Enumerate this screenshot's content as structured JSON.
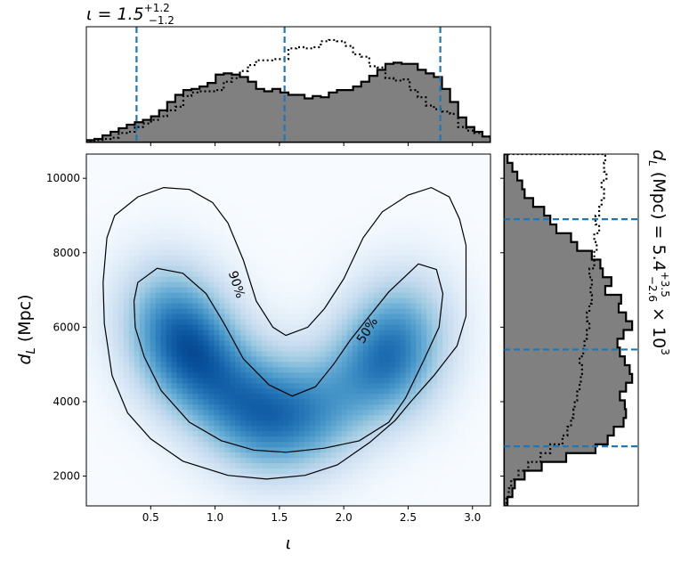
{
  "chart_data": [
    {
      "panel": "joint",
      "type": "heatmap",
      "xlabel": "ι",
      "ylabel": "d_L (Mpc)",
      "xlim": [
        0.0,
        3.14
      ],
      "ylim": [
        1200,
        10650
      ],
      "xticks": [
        0.5,
        1.0,
        1.5,
        2.0,
        2.5,
        3.0
      ],
      "yticks": [
        2000,
        4000,
        6000,
        8000,
        10000
      ],
      "colormap": "Blues",
      "density_modes": [
        {
          "x": 0.78,
          "y": 5400,
          "weight": 1.0
        },
        {
          "x": 1.05,
          "y": 4300,
          "weight": 0.55
        },
        {
          "x": 1.38,
          "y": 3500,
          "weight": 0.85
        },
        {
          "x": 1.8,
          "y": 3700,
          "weight": 0.7
        },
        {
          "x": 2.32,
          "y": 5000,
          "weight": 1.0
        },
        {
          "x": 0.6,
          "y": 6600,
          "weight": 0.55
        },
        {
          "x": 2.48,
          "y": 6300,
          "weight": 0.5
        }
      ],
      "contours": [
        {
          "label": "90%",
          "label_at": {
            "x": 1.17,
            "y": 7150,
            "rotation": 72
          },
          "points": [
            [
              0.13,
              7200
            ],
            [
              0.16,
              8400
            ],
            [
              0.22,
              9000
            ],
            [
              0.4,
              9500
            ],
            [
              0.6,
              9750
            ],
            [
              0.8,
              9700
            ],
            [
              0.98,
              9350
            ],
            [
              1.1,
              8800
            ],
            [
              1.22,
              7800
            ],
            [
              1.32,
              6700
            ],
            [
              1.45,
              6000
            ],
            [
              1.55,
              5780
            ],
            [
              1.72,
              6000
            ],
            [
              1.85,
              6500
            ],
            [
              2.0,
              7300
            ],
            [
              2.15,
              8400
            ],
            [
              2.3,
              9100
            ],
            [
              2.5,
              9550
            ],
            [
              2.68,
              9750
            ],
            [
              2.82,
              9500
            ],
            [
              2.9,
              8900
            ],
            [
              2.95,
              8200
            ],
            [
              2.95,
              7300
            ],
            [
              2.95,
              6300
            ],
            [
              2.88,
              5500
            ],
            [
              2.7,
              4700
            ],
            [
              2.52,
              4000
            ],
            [
              2.4,
              3500
            ],
            [
              2.2,
              2900
            ],
            [
              1.95,
              2300
            ],
            [
              1.7,
              2020
            ],
            [
              1.4,
              1920
            ],
            [
              1.1,
              2020
            ],
            [
              0.75,
              2400
            ],
            [
              0.5,
              3000
            ],
            [
              0.32,
              3700
            ],
            [
              0.2,
              4700
            ],
            [
              0.14,
              6100
            ],
            [
              0.13,
              7200
            ]
          ]
        },
        {
          "label": "50%",
          "label_at": {
            "x": 2.18,
            "y": 5920,
            "rotation": -58
          },
          "points": [
            [
              0.37,
              6700
            ],
            [
              0.4,
              7200
            ],
            [
              0.55,
              7580
            ],
            [
              0.75,
              7450
            ],
            [
              0.93,
              6900
            ],
            [
              1.07,
              6100
            ],
            [
              1.22,
              5150
            ],
            [
              1.42,
              4450
            ],
            [
              1.6,
              4150
            ],
            [
              1.78,
              4400
            ],
            [
              1.92,
              5000
            ],
            [
              2.05,
              5650
            ],
            [
              2.2,
              6300
            ],
            [
              2.35,
              6950
            ],
            [
              2.58,
              7700
            ],
            [
              2.72,
              7550
            ],
            [
              2.77,
              6900
            ],
            [
              2.74,
              6000
            ],
            [
              2.62,
              5100
            ],
            [
              2.48,
              4100
            ],
            [
              2.35,
              3450
            ],
            [
              2.12,
              2950
            ],
            [
              1.85,
              2750
            ],
            [
              1.55,
              2640
            ],
            [
              1.3,
              2700
            ],
            [
              1.05,
              2950
            ],
            [
              0.8,
              3450
            ],
            [
              0.58,
              4300
            ],
            [
              0.45,
              5200
            ],
            [
              0.38,
              6000
            ],
            [
              0.37,
              6700
            ]
          ]
        }
      ]
    },
    {
      "panel": "top-marginal",
      "type": "bar",
      "title": "ι = 1.5^{+1.2}_{-1.2}",
      "title_base": "ι = 1.5",
      "title_sup": "+1.2",
      "title_sub": "−1.2",
      "x_range": [
        0.0,
        3.14
      ],
      "bins": 50,
      "series": [
        {
          "style": "filled",
          "color": "#808080",
          "values": [
            2,
            3,
            6,
            9,
            12,
            15,
            17,
            19,
            22,
            27,
            34,
            40,
            44,
            45,
            47,
            50,
            57,
            58,
            57,
            55,
            51,
            45,
            43,
            45,
            42,
            40,
            40,
            37,
            39,
            38,
            42,
            44,
            44,
            47,
            51,
            56,
            61,
            66,
            67,
            66,
            66,
            61,
            58,
            55,
            45,
            34,
            21,
            13,
            9,
            5
          ]
        },
        {
          "style": "dotted",
          "color": "#000000",
          "values": [
            1,
            2,
            3,
            4,
            8,
            9,
            13,
            16,
            19,
            22,
            27,
            30,
            39,
            42,
            43,
            43,
            44,
            51,
            54,
            60,
            65,
            69,
            69,
            70,
            70,
            79,
            80,
            79,
            80,
            85,
            86,
            85,
            81,
            74,
            72,
            64,
            63,
            54,
            52,
            53,
            44,
            38,
            31,
            28,
            26,
            24,
            13,
            10,
            8,
            5
          ]
        }
      ],
      "quantile_lines": [
        0.39,
        1.54,
        2.75
      ]
    },
    {
      "panel": "right-marginal",
      "type": "bar",
      "orientation": "horizontal",
      "label_base": "d",
      "label_sub": "L",
      "label_mid": " (Mpc) = 5.4",
      "label_sup1": "+3.5",
      "label_sub1": "−2.6",
      "label_tail": " × 10",
      "label_sup2": "3",
      "y_range": [
        1200,
        10650
      ],
      "bins": 40,
      "series": [
        {
          "style": "filled",
          "color": "#808080",
          "values": [
            3,
            7,
            9,
            17,
            31,
            51,
            75,
            85,
            90,
            98,
            100,
            99,
            95,
            100,
            105,
            103,
            99,
            95,
            93,
            98,
            105,
            100,
            94,
            96,
            83,
            88,
            81,
            79,
            72,
            60,
            55,
            43,
            38,
            33,
            24,
            17,
            15,
            11,
            7,
            3
          ]
        },
        {
          "style": "dotted",
          "color": "#000000",
          "values": [
            2,
            4,
            6,
            12,
            20,
            30,
            38,
            48,
            52,
            55,
            57,
            58,
            60,
            62,
            63,
            64,
            62,
            65,
            66,
            68,
            70,
            68,
            70,
            72,
            71,
            72,
            70,
            74,
            74,
            76,
            74,
            78,
            75,
            78,
            80,
            82,
            80,
            84,
            82,
            83
          ]
        }
      ],
      "quantile_lines": [
        2800,
        5400,
        8900
      ]
    }
  ]
}
